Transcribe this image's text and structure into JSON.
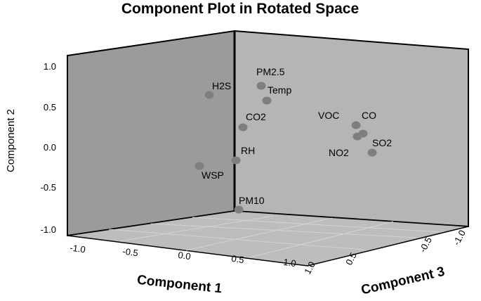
{
  "chart_data": {
    "type": "scatter",
    "title": "Component Plot in Rotated Space",
    "xlabel": "Component 1",
    "ylabel": "Component 2",
    "zlabel": "Component 3",
    "xlim": [
      -1.0,
      1.0
    ],
    "ylim": [
      -1.0,
      1.0
    ],
    "zlim": [
      -1.0,
      1.0
    ],
    "ticks_x": [
      "-1.0",
      "-0.5",
      "0.0",
      "0.5",
      "1.0"
    ],
    "ticks_y": [
      "1.0",
      "0.5",
      "0.0",
      "-0.5",
      "-1.0"
    ],
    "ticks_z": [
      "1.0",
      "0.5",
      "-0.5",
      "-1.0"
    ],
    "grid": false,
    "point_color": "#7f7f7f",
    "points": [
      {
        "label": "PM2.5"
      },
      {
        "label": "H2S"
      },
      {
        "label": "Temp"
      },
      {
        "label": "CO2"
      },
      {
        "label": "VOC"
      },
      {
        "label": "CO"
      },
      {
        "label": "SO2"
      },
      {
        "label": "NO2"
      },
      {
        "label": "RH"
      },
      {
        "label": "WSP"
      },
      {
        "label": "PM10"
      }
    ]
  }
}
